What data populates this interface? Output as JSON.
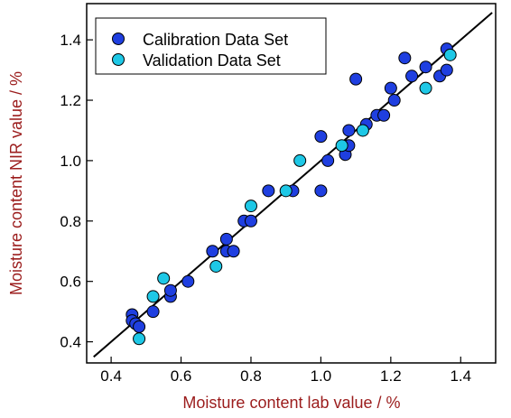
{
  "chart_data": {
    "type": "scatter",
    "xlabel": "Moisture content lab value / %",
    "ylabel": "Moisture content NIR value / %",
    "xlim": [
      0.33,
      1.5
    ],
    "ylim": [
      0.33,
      1.52
    ],
    "xticks": [
      0.4,
      0.6,
      0.8,
      1.0,
      1.2,
      1.4
    ],
    "yticks": [
      0.4,
      0.6,
      0.8,
      1.0,
      1.2,
      1.4
    ],
    "xtick_labels": [
      "0.4",
      "0.6",
      "0.8",
      "1.0",
      "1.2",
      "1.4"
    ],
    "ytick_labels": [
      "0.4",
      "0.6",
      "0.8",
      "1.0",
      "1.2",
      "1.4"
    ],
    "grid": false,
    "legend_position": "top-left",
    "reference_line": {
      "x": [
        0.35,
        1.49
      ],
      "y": [
        0.35,
        1.49
      ],
      "color": "#000000"
    },
    "series": [
      {
        "name": "Calibration Data Set",
        "color": "#1f3fe0",
        "points": [
          {
            "x": 0.46,
            "y": 0.49
          },
          {
            "x": 0.46,
            "y": 0.47
          },
          {
            "x": 0.47,
            "y": 0.46
          },
          {
            "x": 0.48,
            "y": 0.45
          },
          {
            "x": 0.52,
            "y": 0.5
          },
          {
            "x": 0.57,
            "y": 0.55
          },
          {
            "x": 0.57,
            "y": 0.57
          },
          {
            "x": 0.62,
            "y": 0.6
          },
          {
            "x": 0.69,
            "y": 0.7
          },
          {
            "x": 0.73,
            "y": 0.74
          },
          {
            "x": 0.73,
            "y": 0.7
          },
          {
            "x": 0.75,
            "y": 0.7
          },
          {
            "x": 0.78,
            "y": 0.8
          },
          {
            "x": 0.8,
            "y": 0.8
          },
          {
            "x": 0.85,
            "y": 0.9
          },
          {
            "x": 0.92,
            "y": 0.9
          },
          {
            "x": 1.0,
            "y": 1.08
          },
          {
            "x": 1.0,
            "y": 0.9
          },
          {
            "x": 1.02,
            "y": 1.0
          },
          {
            "x": 1.07,
            "y": 1.02
          },
          {
            "x": 1.08,
            "y": 1.1
          },
          {
            "x": 1.08,
            "y": 1.05
          },
          {
            "x": 1.1,
            "y": 1.27
          },
          {
            "x": 1.13,
            "y": 1.12
          },
          {
            "x": 1.16,
            "y": 1.15
          },
          {
            "x": 1.18,
            "y": 1.15
          },
          {
            "x": 1.2,
            "y": 1.24
          },
          {
            "x": 1.21,
            "y": 1.2
          },
          {
            "x": 1.24,
            "y": 1.34
          },
          {
            "x": 1.26,
            "y": 1.28
          },
          {
            "x": 1.3,
            "y": 1.31
          },
          {
            "x": 1.34,
            "y": 1.28
          },
          {
            "x": 1.36,
            "y": 1.3
          },
          {
            "x": 1.36,
            "y": 1.37
          }
        ]
      },
      {
        "name": "Validation Data Set",
        "color": "#1ec8e6",
        "points": [
          {
            "x": 0.48,
            "y": 0.41
          },
          {
            "x": 0.52,
            "y": 0.55
          },
          {
            "x": 0.55,
            "y": 0.61
          },
          {
            "x": 0.7,
            "y": 0.65
          },
          {
            "x": 0.8,
            "y": 0.85
          },
          {
            "x": 0.9,
            "y": 0.9
          },
          {
            "x": 0.94,
            "y": 1.0
          },
          {
            "x": 1.06,
            "y": 1.05
          },
          {
            "x": 1.12,
            "y": 1.1
          },
          {
            "x": 1.3,
            "y": 1.24
          },
          {
            "x": 1.37,
            "y": 1.35
          }
        ]
      }
    ]
  }
}
